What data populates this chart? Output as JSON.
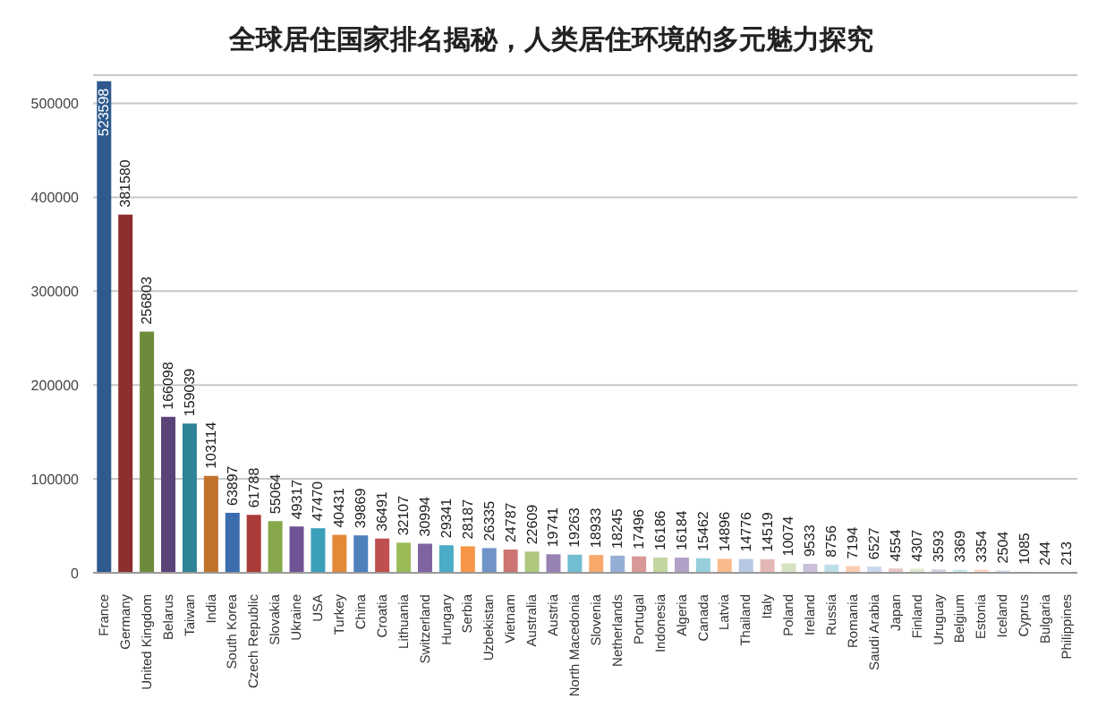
{
  "chart_data": {
    "type": "bar",
    "title": "全球居住国家排名揭秘，人类居住环境的多元魅力探究",
    "categories": [
      "France",
      "Germany",
      "United Kingdom",
      "Belarus",
      "Taiwan",
      "India",
      "South Korea",
      "Czech Republic",
      "Slovakia",
      "Ukraine",
      "USA",
      "Turkey",
      "China",
      "Croatia",
      "Lithuania",
      "Switzerland",
      "Hungary",
      "Serbia",
      "Uzbekistan",
      "Vietnam",
      "Australia",
      "Austria",
      "North Macedonia",
      "Slovenia",
      "Netherlands",
      "Portugal",
      "Indonesia",
      "Algeria",
      "Canada",
      "Latvia",
      "Thailand",
      "Italy",
      "Poland",
      "Ireland",
      "Russia",
      "Romania",
      "Saudi Arabia",
      "Japan",
      "Finland",
      "Uruguay",
      "Belgium",
      "Estonia",
      "Iceland",
      "Cyprus",
      "Bulgaria",
      "Philippines"
    ],
    "values": [
      523598,
      381580,
      256803,
      166098,
      159039,
      103114,
      63897,
      61788,
      55064,
      49317,
      47470,
      40431,
      39869,
      36491,
      32107,
      30994,
      29341,
      28187,
      26335,
      24787,
      22609,
      19741,
      19263,
      18933,
      18245,
      17496,
      16186,
      16184,
      15462,
      14896,
      14776,
      14519,
      10074,
      9533,
      8756,
      7194,
      6527,
      4554,
      4307,
      3593,
      3369,
      3354,
      2504,
      1085,
      244,
      213
    ],
    "colors": [
      "#2e5a8e",
      "#8c2f2e",
      "#6e8b3d",
      "#5b4378",
      "#2f8397",
      "#c0712c",
      "#3b6cae",
      "#ab3b39",
      "#86a84b",
      "#6f5394",
      "#3a9fb9",
      "#e48a37",
      "#4f81bd",
      "#c0504d",
      "#9bbb59",
      "#8064a2",
      "#4bacc6",
      "#f79646",
      "#7094c8",
      "#cb7472",
      "#aec87d",
      "#9881b4",
      "#71bdd1",
      "#f8a96b",
      "#94aed6",
      "#d89897",
      "#c2d6a0",
      "#b1a1c7",
      "#96cedc",
      "#fabb8f",
      "#b6c8e3",
      "#e3b7b6",
      "#d6e3c2",
      "#cac0da",
      "#bcdfe8",
      "#fccdb3",
      "#c9d7ec",
      "#e9c6c5",
      "#dfe9cf",
      "#d5cde2",
      "#cbe6ee",
      "#fdd8c3",
      "#d3dfef",
      "#eed3d2",
      "#e6eedb",
      "#dfd9e8"
    ],
    "ylim": [
      0,
      530000
    ],
    "yticks": [
      0,
      100000,
      200000,
      300000,
      400000,
      500000
    ],
    "grid": "y",
    "data_labels": true
  }
}
